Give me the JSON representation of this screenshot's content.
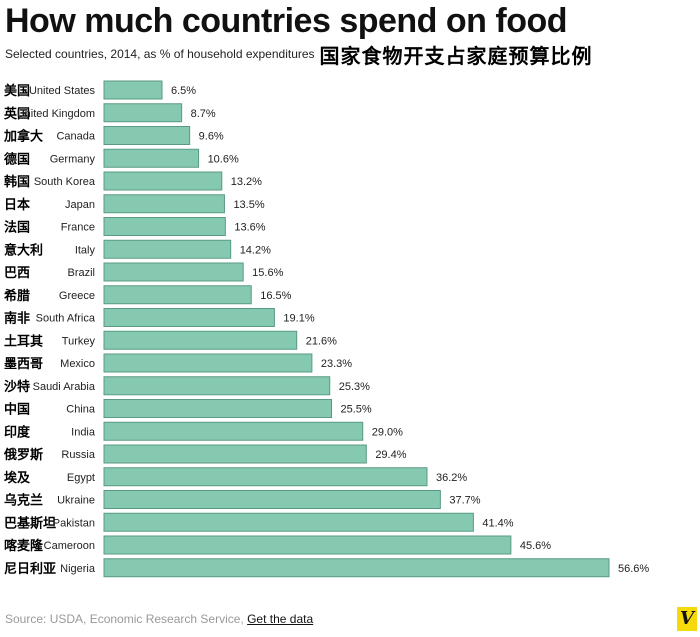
{
  "title": "How much countries spend on food",
  "subtitle": "Selected countries, 2014, as % of household expenditures",
  "subtitle_cn": "国家食物开支占家庭预算比例",
  "source_prefix": "Source: USDA, Economic Research Service, ",
  "source_link": "Get the data",
  "logo_text": "V",
  "colors": {
    "bar": "#85c9b0",
    "bar_stroke": "#5a9a82",
    "logo_bg": "#f5d90a"
  },
  "chart_data": {
    "type": "bar",
    "orientation": "horizontal",
    "title": "How much countries spend on food",
    "subtitle": "Selected countries, 2014, as % of household expenditures",
    "categories": [
      "United States",
      "United Kingdom",
      "Canada",
      "Germany",
      "South Korea",
      "Japan",
      "France",
      "Italy",
      "Brazil",
      "Greece",
      "South Africa",
      "Turkey",
      "Mexico",
      "Saudi Arabia",
      "China",
      "India",
      "Russia",
      "Egypt",
      "Ukraine",
      "Pakistan",
      "Cameroon",
      "Nigeria"
    ],
    "categories_cn": [
      "美国",
      "英国",
      "加拿大",
      "德国",
      "韩国",
      "日本",
      "法国",
      "意大利",
      "巴西",
      "希腊",
      "南非",
      "土耳其",
      "墨西哥",
      "沙特",
      "中国",
      "印度",
      "俄罗斯",
      "埃及",
      "乌克兰",
      "巴基斯坦",
      "喀麦隆",
      "尼日利亚"
    ],
    "values": [
      6.5,
      8.7,
      9.6,
      10.6,
      13.2,
      13.5,
      13.6,
      14.2,
      15.6,
      16.5,
      19.1,
      21.6,
      23.3,
      25.3,
      25.5,
      29.0,
      29.4,
      36.2,
      37.7,
      41.4,
      45.6,
      56.6
    ],
    "value_labels": [
      "6.5%",
      "8.7%",
      "9.6%",
      "10.6%",
      "13.2%",
      "13.5%",
      "13.6%",
      "14.2%",
      "15.6%",
      "16.5%",
      "19.1%",
      "21.6%",
      "23.3%",
      "25.3%",
      "25.5%",
      "29.0%",
      "29.4%",
      "36.2%",
      "37.7%",
      "41.4%",
      "45.6%",
      "56.6%"
    ],
    "unit": "%",
    "xlim": [
      0,
      56.6
    ],
    "grid": false,
    "legend": "none"
  }
}
